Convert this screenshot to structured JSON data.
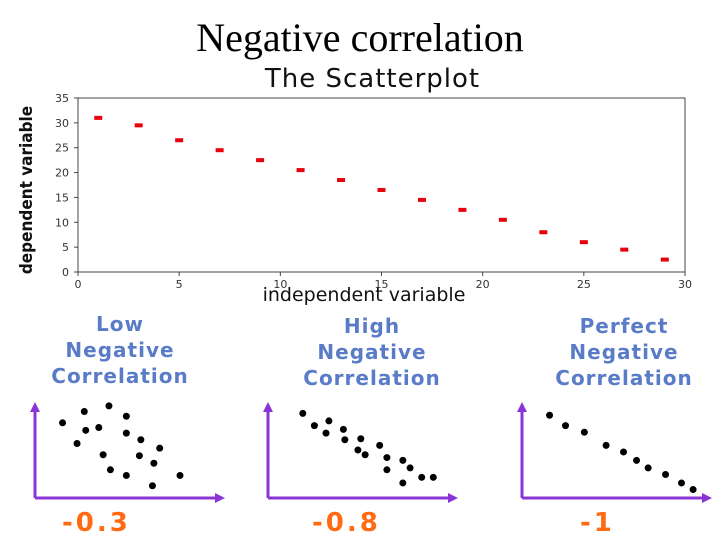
{
  "slide": {
    "title": "Negative correlation"
  },
  "chart_data": [
    {
      "type": "scatter",
      "title": "The Scatterplot",
      "xlabel": "independent variable",
      "ylabel": "dependent variable",
      "xlim": [
        0,
        30
      ],
      "ylim": [
        0,
        35
      ],
      "xticks": [
        0,
        5,
        10,
        15,
        20,
        25,
        30
      ],
      "yticks": [
        0,
        5,
        10,
        15,
        20,
        25,
        30,
        35
      ],
      "marker_color": "#e8000b",
      "x": [
        1,
        3,
        5,
        7,
        9,
        11,
        13,
        15,
        17,
        19,
        21,
        23,
        25,
        27,
        29
      ],
      "y": [
        31,
        29.5,
        26.5,
        24.5,
        22.5,
        20.5,
        18.5,
        16.5,
        14.5,
        12.5,
        10.5,
        8,
        6,
        4.5,
        2.5
      ]
    },
    {
      "type": "scatter",
      "title_lines": [
        "Low",
        "Negative",
        "Correlation"
      ],
      "coefficient": "-0.3",
      "points": [
        [
          0.19,
          0.8
        ],
        [
          0.34,
          0.92
        ],
        [
          0.51,
          0.98
        ],
        [
          0.44,
          0.75
        ],
        [
          0.63,
          0.87
        ],
        [
          0.35,
          0.72
        ],
        [
          0.29,
          0.58
        ],
        [
          0.63,
          0.69
        ],
        [
          0.73,
          0.62
        ],
        [
          0.47,
          0.46
        ],
        [
          0.52,
          0.3
        ],
        [
          0.72,
          0.45
        ],
        [
          0.86,
          0.53
        ],
        [
          0.82,
          0.37
        ],
        [
          0.63,
          0.24
        ],
        [
          1.0,
          0.24
        ],
        [
          0.81,
          0.13
        ]
      ]
    },
    {
      "type": "scatter",
      "title_lines": [
        "High",
        "Negative",
        "Correlation"
      ],
      "coefficient": "-0.8",
      "points": [
        [
          0.24,
          0.9
        ],
        [
          0.32,
          0.77
        ],
        [
          0.42,
          0.82
        ],
        [
          0.4,
          0.69
        ],
        [
          0.52,
          0.73
        ],
        [
          0.53,
          0.62
        ],
        [
          0.64,
          0.63
        ],
        [
          0.62,
          0.51
        ],
        [
          0.67,
          0.46
        ],
        [
          0.77,
          0.56
        ],
        [
          0.82,
          0.43
        ],
        [
          0.93,
          0.4
        ],
        [
          0.82,
          0.3
        ],
        [
          0.98,
          0.32
        ],
        [
          1.06,
          0.22
        ],
        [
          0.93,
          0.16
        ],
        [
          1.14,
          0.22
        ]
      ]
    },
    {
      "type": "scatter",
      "title_lines": [
        "Perfect",
        "Negative",
        "Correlation"
      ],
      "coefficient": "-1",
      "points": [
        [
          0.19,
          0.88
        ],
        [
          0.3,
          0.77
        ],
        [
          0.43,
          0.7
        ],
        [
          0.58,
          0.56
        ],
        [
          0.7,
          0.49
        ],
        [
          0.79,
          0.4
        ],
        [
          0.87,
          0.32
        ],
        [
          0.99,
          0.25
        ],
        [
          1.1,
          0.16
        ],
        [
          1.18,
          0.09
        ]
      ]
    }
  ],
  "mini_axis_color": "#8a34d6",
  "point_color": "#000000"
}
